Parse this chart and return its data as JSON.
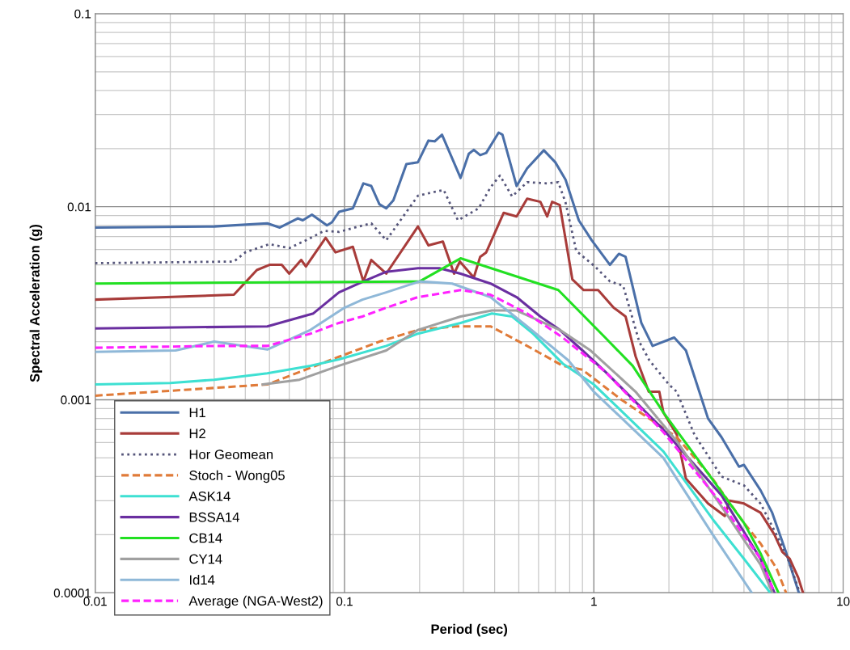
{
  "chart_data": {
    "type": "line",
    "xlabel": "Period (sec)",
    "ylabel": "Spectral Acceleration (g)",
    "log": "xy",
    "grid": true,
    "legend": "bottom left",
    "marker": "none",
    "xlim": [
      0.01,
      10
    ],
    "xticks": [
      0.01,
      0.1,
      1,
      10
    ],
    "ylim": [
      0.0001,
      0.1
    ],
    "yticks": [
      0.0001,
      0.001,
      0.01,
      0.1
    ],
    "series": [
      {
        "name": "H1",
        "color": "#4a6fa8",
        "line_style": "solid",
        "x": [
          0.01,
          0.03,
          0.049,
          0.055,
          0.065,
          0.068,
          0.074,
          0.085,
          0.089,
          0.095,
          0.108,
          0.119,
          0.128,
          0.138,
          0.147,
          0.157,
          0.177,
          0.197,
          0.217,
          0.23,
          0.246,
          0.292,
          0.315,
          0.33,
          0.35,
          0.37,
          0.415,
          0.43,
          0.49,
          0.54,
          0.63,
          0.7,
          0.77,
          0.87,
          0.98,
          1.16,
          1.26,
          1.34,
          1.55,
          1.72,
          2.1,
          2.34,
          2.87,
          3.25,
          3.82,
          4.0,
          4.66,
          5.19,
          5.89,
          6.64
        ],
        "values": [
          0.0078,
          0.0079,
          0.0082,
          0.0078,
          0.0087,
          0.0085,
          0.0091,
          0.008,
          0.0083,
          0.0094,
          0.0098,
          0.0132,
          0.0128,
          0.0103,
          0.0098,
          0.0108,
          0.0166,
          0.017,
          0.022,
          0.0218,
          0.0236,
          0.0141,
          0.0188,
          0.0197,
          0.0185,
          0.019,
          0.0242,
          0.0236,
          0.0128,
          0.0158,
          0.0196,
          0.017,
          0.0138,
          0.0085,
          0.0067,
          0.005,
          0.0057,
          0.0055,
          0.0025,
          0.0019,
          0.0021,
          0.0018,
          0.0008,
          0.00064,
          0.00045,
          0.00046,
          0.00034,
          0.00026,
          0.000163,
          0.0001
        ]
      },
      {
        "name": "H2",
        "color": "#a83c3a",
        "line_style": "solid",
        "x": [
          0.01,
          0.036,
          0.0445,
          0.05,
          0.056,
          0.06,
          0.067,
          0.07,
          0.084,
          0.092,
          0.108,
          0.119,
          0.128,
          0.147,
          0.197,
          0.217,
          0.248,
          0.275,
          0.29,
          0.33,
          0.35,
          0.37,
          0.435,
          0.49,
          0.54,
          0.61,
          0.65,
          0.68,
          0.73,
          0.82,
          0.91,
          1.04,
          1.2,
          1.34,
          1.47,
          1.66,
          1.83,
          1.9,
          2.15,
          2.34,
          2.87,
          3.35,
          3.5,
          4.0,
          4.66,
          5.3,
          5.7,
          6.1,
          6.6,
          6.9
        ],
        "values": [
          0.0033,
          0.0035,
          0.0047,
          0.005,
          0.005,
          0.0045,
          0.0053,
          0.0049,
          0.0069,
          0.0058,
          0.0062,
          0.0041,
          0.0053,
          0.0045,
          0.0079,
          0.0063,
          0.0066,
          0.0045,
          0.0052,
          0.0043,
          0.0055,
          0.0058,
          0.0093,
          0.0089,
          0.011,
          0.0106,
          0.0089,
          0.0106,
          0.0102,
          0.0042,
          0.0037,
          0.0037,
          0.003,
          0.0027,
          0.00168,
          0.0011,
          0.0011,
          0.00086,
          0.00066,
          0.00039,
          0.00029,
          0.00025,
          0.0003,
          0.00029,
          0.00026,
          0.0002,
          0.000163,
          0.00015,
          0.00012,
          0.0001
        ]
      },
      {
        "name": "Hor Geomean",
        "color": "#55557a",
        "line_style": "dotted",
        "x": [
          0.01,
          0.036,
          0.04,
          0.05,
          0.06,
          0.07,
          0.083,
          0.095,
          0.11,
          0.128,
          0.147,
          0.197,
          0.234,
          0.25,
          0.285,
          0.345,
          0.385,
          0.42,
          0.47,
          0.54,
          0.65,
          0.72,
          0.77,
          0.85,
          1.01,
          1.16,
          1.31,
          1.52,
          1.67,
          2.0,
          2.15,
          2.53,
          3.25,
          4.0,
          4.66,
          5.4,
          6.0,
          6.7
        ],
        "values": [
          0.0051,
          0.0052,
          0.0058,
          0.0064,
          0.0061,
          0.0067,
          0.0075,
          0.0074,
          0.0078,
          0.0082,
          0.0067,
          0.0114,
          0.012,
          0.0122,
          0.0085,
          0.0098,
          0.0126,
          0.0145,
          0.0113,
          0.0134,
          0.0132,
          0.0134,
          0.0105,
          0.0059,
          0.0049,
          0.0041,
          0.0039,
          0.002,
          0.0016,
          0.0012,
          0.0011,
          0.00066,
          0.0004,
          0.00036,
          0.00029,
          0.0002,
          0.00015,
          0.0001
        ]
      },
      {
        "name": "Stoch - Wong05",
        "color": "#e07b39",
        "line_style": "dashed",
        "x": [
          0.01,
          0.049,
          0.095,
          0.138,
          0.197,
          0.28,
          0.385,
          0.54,
          0.75,
          0.9,
          1.29,
          2.15,
          2.95,
          4.0,
          4.66,
          5.4,
          5.9
        ],
        "values": [
          0.00105,
          0.0012,
          0.00167,
          0.002,
          0.0023,
          0.0024,
          0.0024,
          0.0019,
          0.0015,
          0.00143,
          0.001,
          0.00064,
          0.0004,
          0.00023,
          0.00018,
          0.000134,
          0.0001
        ]
      },
      {
        "name": "ASK14",
        "color": "#3ee0d2",
        "line_style": "solid",
        "x": [
          0.01,
          0.02,
          0.03,
          0.049,
          0.073,
          0.095,
          0.147,
          0.197,
          0.292,
          0.39,
          0.47,
          0.57,
          0.75,
          1.0,
          1.9,
          3.0,
          4.0,
          5.1
        ],
        "values": [
          0.0012,
          0.00122,
          0.00127,
          0.00137,
          0.0015,
          0.00162,
          0.0019,
          0.0022,
          0.0025,
          0.0028,
          0.0027,
          0.0022,
          0.00154,
          0.0012,
          0.00054,
          0.00024,
          0.00015,
          0.0001
        ]
      },
      {
        "name": "BSSA14",
        "color": "#6a2fa0",
        "line_style": "solid",
        "x": [
          0.01,
          0.049,
          0.075,
          0.095,
          0.119,
          0.147,
          0.197,
          0.24,
          0.292,
          0.385,
          0.49,
          0.61,
          0.73,
          0.9,
          1.11,
          1.9,
          3.25,
          4.66,
          5.3
        ],
        "values": [
          0.00234,
          0.0024,
          0.0028,
          0.0036,
          0.0041,
          0.0046,
          0.0048,
          0.0048,
          0.0045,
          0.004,
          0.0034,
          0.0027,
          0.0023,
          0.0018,
          0.0014,
          0.0007,
          0.00032,
          0.00015,
          0.0001
        ]
      },
      {
        "name": "CB14",
        "color": "#22e022",
        "line_style": "solid",
        "x": [
          0.01,
          0.2,
          0.292,
          0.72,
          1.11,
          1.43,
          1.9,
          2.78,
          4.0,
          4.66,
          5.5
        ],
        "values": [
          0.004,
          0.0041,
          0.0054,
          0.0037,
          0.0021,
          0.0015,
          0.00086,
          0.00044,
          0.00023,
          0.00016,
          0.0001
        ]
      },
      {
        "name": "CY14",
        "color": "#a0a0a0",
        "line_style": "solid",
        "x": [
          0.047,
          0.066,
          0.095,
          0.147,
          0.197,
          0.292,
          0.39,
          0.49,
          0.73,
          0.97,
          1.47,
          2.15,
          3.25,
          4.66,
          5.2
        ],
        "values": [
          0.0012,
          0.00127,
          0.0015,
          0.0018,
          0.0023,
          0.0027,
          0.0029,
          0.0029,
          0.0023,
          0.0018,
          0.0011,
          0.00061,
          0.00028,
          0.00014,
          0.0001
        ]
      },
      {
        "name": "Id14",
        "color": "#8fb8d8",
        "line_style": "solid",
        "x": [
          0.01,
          0.021,
          0.03,
          0.049,
          0.073,
          0.1,
          0.118,
          0.147,
          0.2,
          0.27,
          0.385,
          0.54,
          0.79,
          1.0,
          1.9,
          3.0,
          4.3
        ],
        "values": [
          0.00177,
          0.0018,
          0.002,
          0.00182,
          0.0023,
          0.003,
          0.0033,
          0.0036,
          0.0041,
          0.004,
          0.0034,
          0.0024,
          0.0016,
          0.0011,
          0.0005,
          0.0002,
          0.0001
        ]
      },
      {
        "name": "Average (NGA-West2)",
        "color": "#ff22ff",
        "line_style": "dashed",
        "x": [
          0.01,
          0.03,
          0.049,
          0.073,
          0.095,
          0.118,
          0.147,
          0.197,
          0.292,
          0.385,
          0.54,
          0.75,
          1.11,
          1.9,
          3.25,
          4.66,
          5.3
        ],
        "values": [
          0.00186,
          0.0019,
          0.0019,
          0.0022,
          0.0025,
          0.0027,
          0.003,
          0.0034,
          0.0037,
          0.0035,
          0.0028,
          0.0021,
          0.0014,
          0.00068,
          0.00029,
          0.00015,
          0.0001
        ]
      }
    ]
  }
}
